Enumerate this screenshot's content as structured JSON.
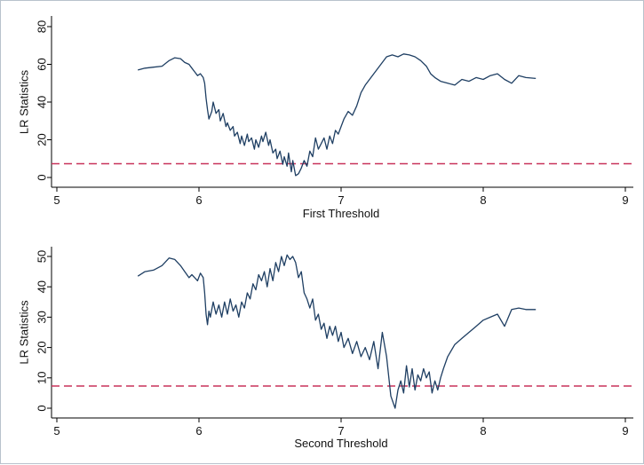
{
  "colors": {
    "line": "#1f3f63",
    "threshold": "#c8325a",
    "axis": "#000000",
    "background": "#ffffff"
  },
  "chart_data": [
    {
      "type": "line",
      "xlabel": "First Threshold",
      "ylabel": "LR Statistics",
      "xlim": [
        5,
        9
      ],
      "ylim": [
        0,
        80
      ],
      "xticks": [
        5,
        6,
        7,
        8,
        9
      ],
      "yticks": [
        0,
        20,
        40,
        60,
        80
      ],
      "grid": false,
      "critical_value": 7.3,
      "series": [
        {
          "x": [
            5.57,
            5.62,
            5.68,
            5.74,
            5.79,
            5.83,
            5.87,
            5.9,
            5.93,
            5.95,
            5.97,
            5.99,
            6.01,
            6.03,
            6.04,
            6.05,
            6.06,
            6.07,
            6.08,
            6.09,
            6.1,
            6.12,
            6.14,
            6.15,
            6.17,
            6.19,
            6.2,
            6.22,
            6.24,
            6.25,
            6.27,
            6.29,
            6.3,
            6.32,
            6.34,
            6.35,
            6.37,
            6.39,
            6.4,
            6.42,
            6.44,
            6.45,
            6.47,
            6.49,
            6.5,
            6.52,
            6.54,
            6.55,
            6.57,
            6.59,
            6.6,
            6.62,
            6.63,
            6.65,
            6.66,
            6.68,
            6.7,
            6.72,
            6.74,
            6.76,
            6.78,
            6.8,
            6.82,
            6.84,
            6.86,
            6.88,
            6.9,
            6.92,
            6.94,
            6.96,
            6.98,
            7.0,
            7.02,
            7.05,
            7.08,
            7.11,
            7.14,
            7.17,
            7.2,
            7.24,
            7.28,
            7.32,
            7.36,
            7.4,
            7.44,
            7.48,
            7.52,
            7.56,
            7.6,
            7.63,
            7.66,
            7.7,
            7.75,
            7.8,
            7.85,
            7.9,
            7.95,
            8.0,
            8.05,
            8.1,
            8.15,
            8.2,
            8.25,
            8.3,
            8.37
          ],
          "y": [
            57,
            58,
            58.5,
            59,
            62,
            63.5,
            63,
            61,
            60,
            58,
            56,
            54,
            55,
            53,
            50,
            42,
            36,
            31,
            33,
            35,
            40,
            34,
            36,
            30,
            34,
            27,
            29,
            25,
            27,
            22,
            24,
            18,
            22,
            17,
            23,
            19,
            21,
            15,
            20,
            16,
            22,
            19,
            24,
            17,
            20,
            13,
            15,
            10,
            14,
            7,
            11,
            6,
            13,
            3,
            9,
            1,
            2,
            5,
            9,
            6,
            14,
            11,
            21,
            15,
            18,
            21,
            15,
            22,
            18,
            25,
            23,
            27,
            31,
            35,
            33,
            38,
            45,
            49,
            52,
            56,
            60,
            64,
            65,
            64,
            65.5,
            65,
            64,
            62,
            59,
            55,
            53,
            51,
            50,
            49,
            52,
            51,
            53,
            52,
            54,
            55,
            52,
            50,
            54,
            53,
            52.5
          ]
        }
      ]
    },
    {
      "type": "line",
      "xlabel": "Second Threshold",
      "ylabel": "LR Statistics",
      "xlim": [
        5,
        9
      ],
      "ylim": [
        0,
        50
      ],
      "xticks": [
        5,
        6,
        7,
        8,
        9
      ],
      "yticks": [
        0,
        10,
        20,
        30,
        40,
        50
      ],
      "grid": false,
      "critical_value": 7.3,
      "series": [
        {
          "x": [
            5.57,
            5.62,
            5.68,
            5.74,
            5.79,
            5.83,
            5.87,
            5.9,
            5.93,
            5.95,
            5.97,
            5.99,
            6.01,
            6.03,
            6.04,
            6.05,
            6.06,
            6.07,
            6.08,
            6.1,
            6.12,
            6.14,
            6.16,
            6.18,
            6.2,
            6.22,
            6.24,
            6.26,
            6.28,
            6.3,
            6.32,
            6.34,
            6.36,
            6.38,
            6.4,
            6.42,
            6.44,
            6.46,
            6.48,
            6.5,
            6.52,
            6.54,
            6.56,
            6.58,
            6.6,
            6.62,
            6.64,
            6.66,
            6.68,
            6.7,
            6.72,
            6.74,
            6.76,
            6.78,
            6.8,
            6.82,
            6.84,
            6.86,
            6.88,
            6.9,
            6.92,
            6.94,
            6.96,
            6.98,
            7.0,
            7.02,
            7.05,
            7.08,
            7.11,
            7.14,
            7.17,
            7.2,
            7.23,
            7.26,
            7.29,
            7.32,
            7.35,
            7.38,
            7.4,
            7.42,
            7.44,
            7.46,
            7.48,
            7.5,
            7.52,
            7.54,
            7.56,
            7.58,
            7.6,
            7.62,
            7.64,
            7.66,
            7.68,
            7.7,
            7.72,
            7.75,
            7.8,
            7.85,
            7.9,
            7.95,
            8.0,
            8.05,
            8.1,
            8.15,
            8.2,
            8.25,
            8.3,
            8.37
          ],
          "y": [
            43.5,
            45,
            45.5,
            47,
            49.5,
            49,
            47,
            45,
            43,
            44,
            43,
            42,
            44.5,
            43,
            38,
            31,
            27.5,
            32,
            30,
            35,
            31,
            34,
            30,
            35,
            31,
            36,
            32,
            34,
            30,
            35,
            33,
            38,
            36,
            41,
            39,
            44,
            42,
            45,
            40,
            46,
            42,
            48,
            45,
            50,
            47,
            50.5,
            49,
            50,
            48,
            43,
            45,
            38,
            36,
            33,
            36,
            29,
            31,
            26,
            28,
            23,
            27,
            24,
            27,
            22,
            25,
            20,
            23,
            18,
            22,
            17,
            20,
            16,
            22,
            13,
            25,
            17,
            4,
            0,
            6,
            9,
            5,
            14,
            7,
            13,
            6,
            11,
            9,
            13,
            10,
            12,
            5,
            9,
            6,
            10,
            13,
            17,
            21,
            23,
            25,
            27,
            29,
            30,
            31,
            27,
            32.5,
            33,
            32.5,
            32.5
          ]
        }
      ]
    }
  ]
}
